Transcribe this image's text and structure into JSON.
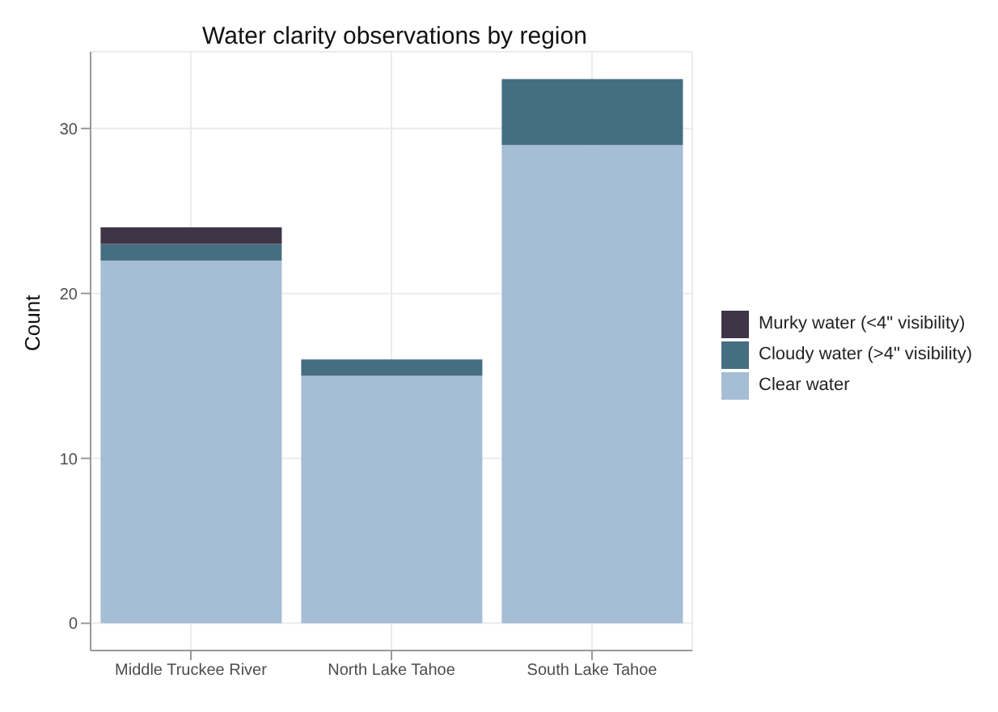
{
  "chart_data": {
    "type": "bar",
    "title": "Water clarity observations by region",
    "ylabel": "Count",
    "categories": [
      "Middle Truckee River",
      "North Lake Tahoe",
      "South Lake Tahoe"
    ],
    "stacked": true,
    "series": [
      {
        "name": "Clear water",
        "color": "#a5bdd5",
        "values": [
          22,
          15,
          29
        ]
      },
      {
        "name": "Cloudy water (>4\" visibility)",
        "color": "#466e82",
        "values": [
          1,
          1,
          4
        ]
      },
      {
        "name": "Murky water (<4\" visibility)",
        "color": "#3f3547",
        "values": [
          1,
          null,
          null
        ]
      }
    ],
    "ylim": [
      -1.65,
      34.65
    ],
    "yticks": [
      0,
      10,
      20,
      30
    ],
    "grid": true,
    "legend": "right"
  }
}
